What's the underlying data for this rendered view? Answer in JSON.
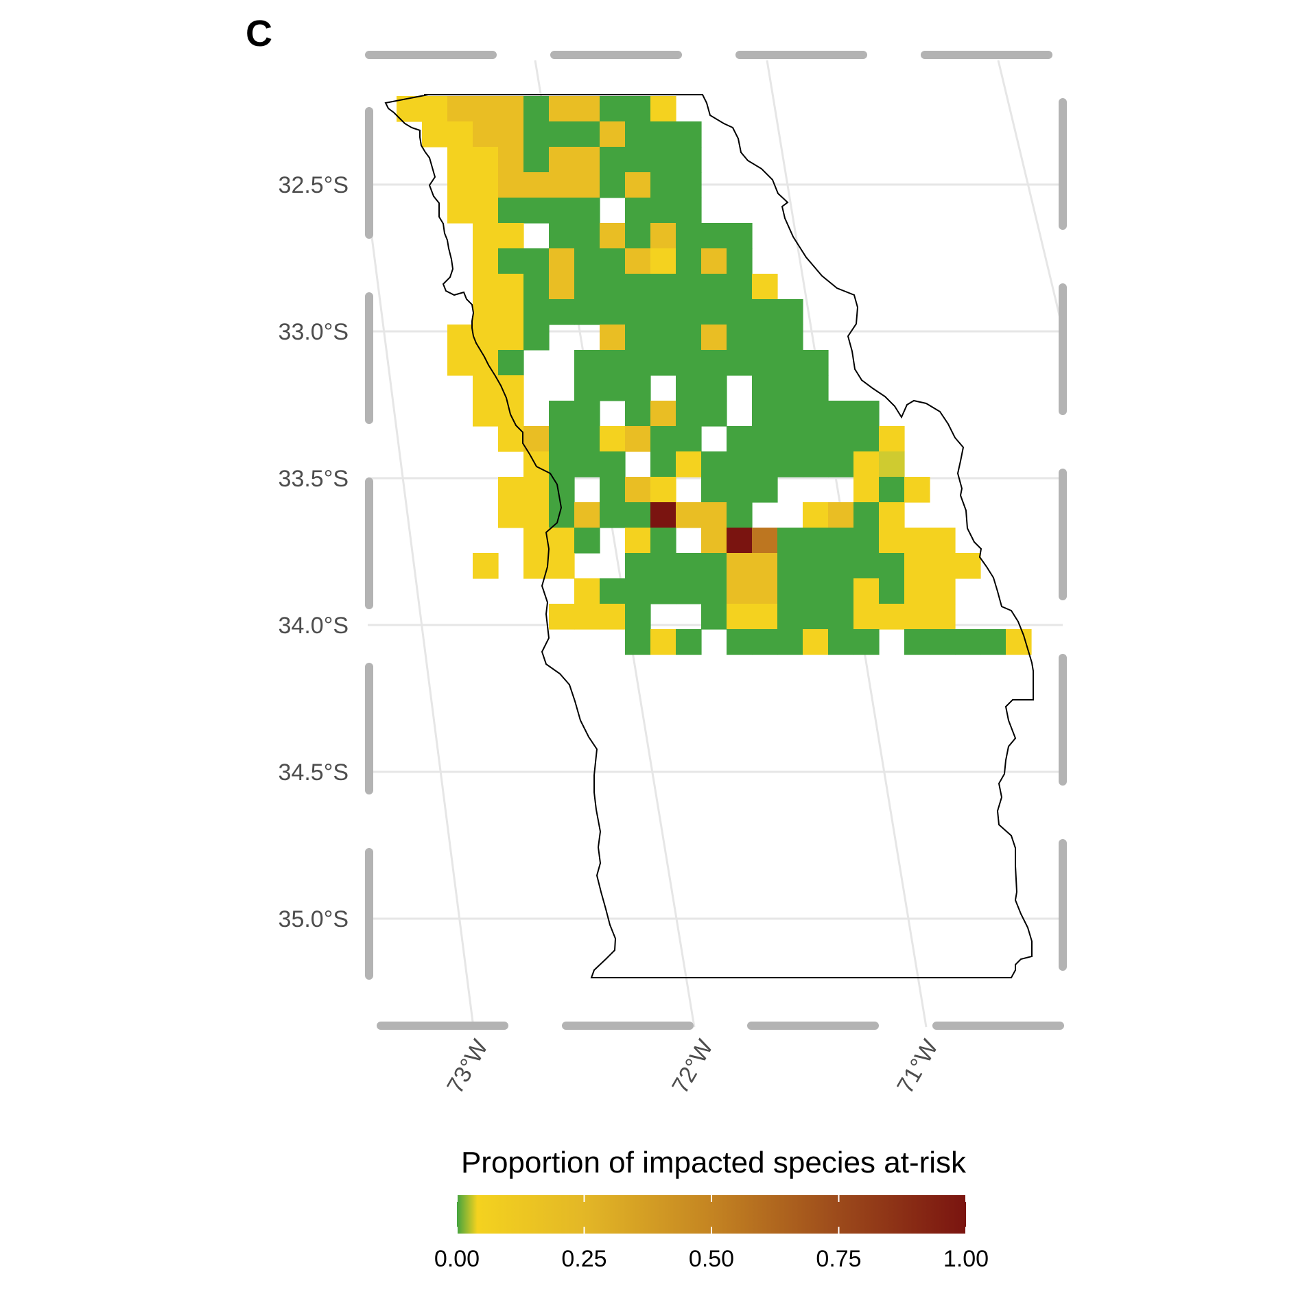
{
  "panel_label": "C",
  "legend": {
    "title": "Proportion of impacted species at-risk",
    "ticks": [
      "0.00",
      "0.25",
      "0.50",
      "0.75",
      "1.00"
    ],
    "tick_values": [
      0,
      0.25,
      0.5,
      0.75,
      1.0
    ],
    "colors": [
      "#43a33f",
      "#f4d21f",
      "#e6b826",
      "#c98e22",
      "#a45a1c",
      "#7a1410"
    ]
  },
  "axes": {
    "lat_labels": [
      "32.5°S",
      "33.0°S",
      "33.5°S",
      "34.0°S",
      "34.5°S",
      "35.0°S"
    ],
    "lat_values": [
      -32.5,
      -33.0,
      -33.5,
      -34.0,
      -34.5,
      -35.0
    ],
    "lon_labels": [
      "73°W",
      "72°W",
      "71°W"
    ],
    "lon_values": [
      -73,
      -72,
      -71
    ]
  },
  "chart_data": {
    "type": "heatmap",
    "title": "",
    "value_range": [
      0,
      1
    ],
    "grid": true,
    "legend_position": "bottom",
    "cell_codes": {
      "G": 0.0,
      "Y": 0.05,
      "y": 0.15,
      "o": 0.45,
      "D": 1.0,
      "l": 0.02
    },
    "rows": [
      "YYyyyGyyGGY.........",
      ".YYyyGGGyGGG........",
      "..YYyGyyGGGG........",
      "..YYyyyyGyGG........",
      "..YYGGGG.GGG........",
      "...YY.GGyGyGGG......",
      "...YGGyGGyYGyG......",
      "...YYGyGGGGGGGY.....",
      "...YYGGGGGGGGGGG....",
      "..YYYG..yGGGyGGG....",
      "..YYG..GGGGGGGGGG...",
      "...YY..GGG.GG.GGG...",
      "...YY.GG.GyGG.GGGGG.",
      "....YyGGYyGG.GGGGGGY",
      ".....YGGG.GYGGGGGGYl",
      "....YYG.GyY.GGG...YGY",
      "....YYGyGGDyyG..YyGY",
      ".....YYG.YG.yDoGGGGYYY",
      "...Y.YY..GGGGyyGGGGGYYY",
      ".......YGGGGGyyGGGYGYY.",
      "......YYYG..GYYGGGYYYY",
      ".........GYG.GGGYGG.GGGGY"
    ]
  }
}
